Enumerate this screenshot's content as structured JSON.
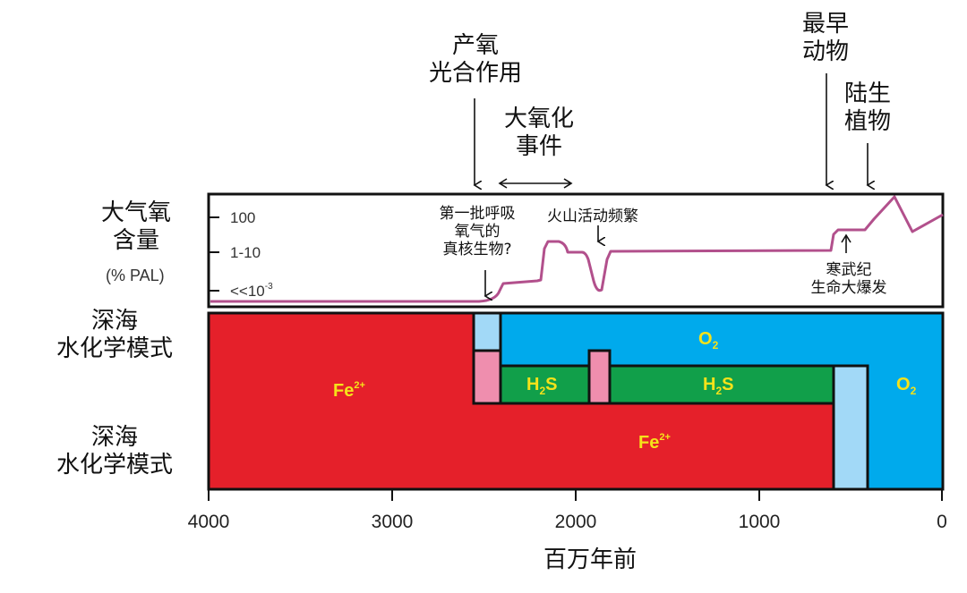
{
  "annotations": {
    "photosynthesis": [
      "产氧",
      "光合作用"
    ],
    "goe": [
      "大氧化",
      "事件"
    ],
    "first_animals": [
      "最早",
      "动物"
    ],
    "land_plants": [
      "陆生",
      "植物"
    ],
    "eukaryotes": [
      "第一批呼吸",
      "氧气的",
      "真核生物?"
    ],
    "volcanic": "火山活动频繁",
    "cambrian": [
      "寒武纪",
      "生命大爆发"
    ]
  },
  "oxygen_panel": {
    "label": [
      "大气氧",
      "含量"
    ],
    "unit": "(% PAL)",
    "levels": [
      "100",
      "1-10",
      "<<10",
      "-3"
    ]
  },
  "ocean_panel": {
    "label_upper": [
      "深海",
      "水化学模式"
    ],
    "label_lower": [
      "深海",
      "水化学模式"
    ],
    "species": {
      "fe": "Fe",
      "fe_sup": "2+",
      "h2s": "H",
      "h2s_sub": "2",
      "h2s_tail": "S",
      "o2": "O",
      "o2_sub": "2"
    }
  },
  "axis": {
    "ticks": [
      "4000",
      "3000",
      "2000",
      "1000",
      "0"
    ],
    "xlabel": "百万年前"
  },
  "colors": {
    "ferruginous": "#e5202a",
    "oxic": "#00aaec",
    "euxinic": "#119f4a",
    "pink": "#ef8eae",
    "light_blue": "#a2d9f7",
    "oxygen_curve": "#b2508c",
    "species_text": "#f5e21a"
  }
}
